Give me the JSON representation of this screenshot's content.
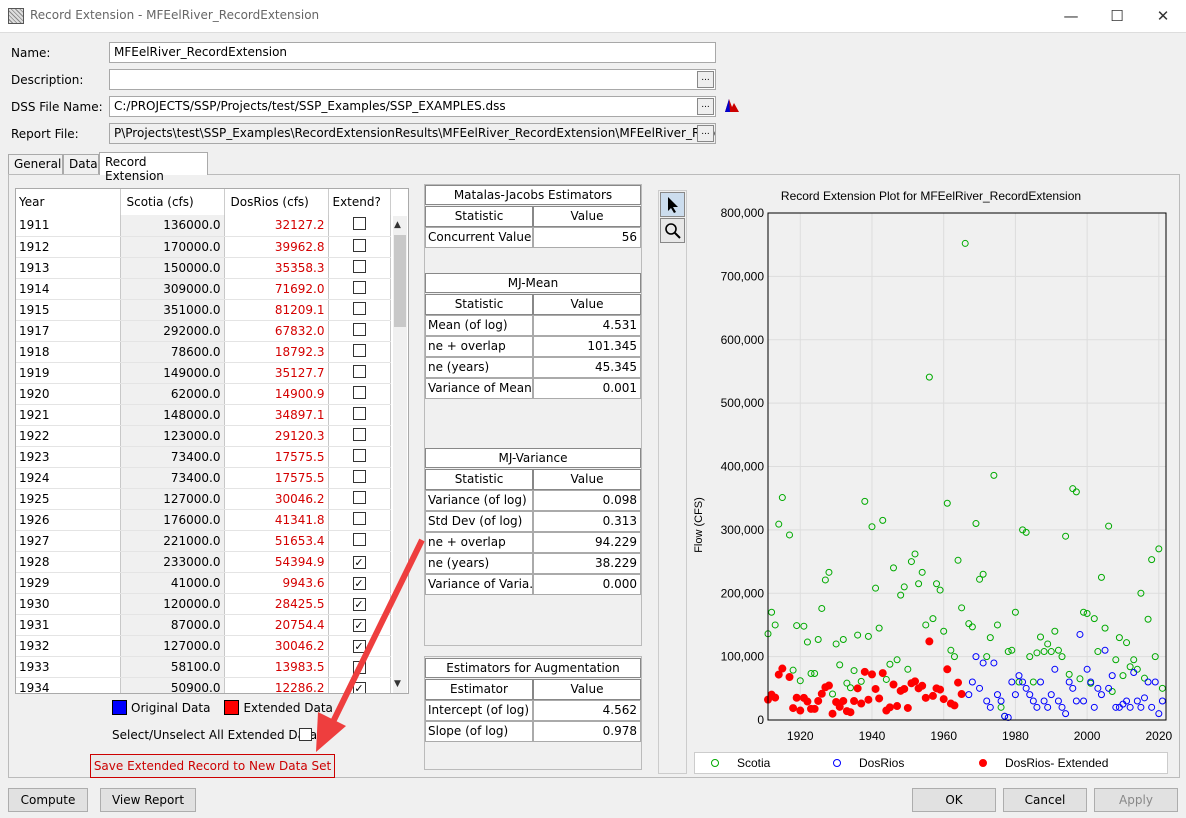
{
  "window": {
    "title": "Record Extension - MFEelRiver_RecordExtension",
    "minimize": "—",
    "maximize": "☐",
    "close": "✕"
  },
  "form": {
    "name_label": "Name:",
    "name_value": "MFEelRiver_RecordExtension",
    "description_label": "Description:",
    "description_value": "",
    "dss_label": "DSS File Name:",
    "dss_value": "C:/PROJECTS/SSP/Projects/test/SSP_Examples/SSP_EXAMPLES.dss",
    "report_label": "Report File:",
    "report_value": "P\\Projects\\test\\SSP_Examples\\RecordExtensionResults\\MFEelRiver_RecordExtension\\MFEelRiver_Record",
    "browse": "..."
  },
  "tabs": [
    "General",
    "Data",
    "Record Extension"
  ],
  "table": {
    "columns": [
      "Year",
      "Scotia (cfs)",
      "DosRios (cfs)",
      "Extend?"
    ],
    "rows": [
      [
        "1911",
        "136000.0",
        "32127.2",
        false
      ],
      [
        "1912",
        "170000.0",
        "39962.8",
        false
      ],
      [
        "1913",
        "150000.0",
        "35358.3",
        false
      ],
      [
        "1914",
        "309000.0",
        "71692.0",
        false
      ],
      [
        "1915",
        "351000.0",
        "81209.1",
        false
      ],
      [
        "1917",
        "292000.0",
        "67832.0",
        false
      ],
      [
        "1918",
        "78600.0",
        "18792.3",
        false
      ],
      [
        "1919",
        "149000.0",
        "35127.7",
        false
      ],
      [
        "1920",
        "62000.0",
        "14900.9",
        false
      ],
      [
        "1921",
        "148000.0",
        "34897.1",
        false
      ],
      [
        "1922",
        "123000.0",
        "29120.3",
        false
      ],
      [
        "1923",
        "73400.0",
        "17575.5",
        false
      ],
      [
        "1924",
        "73400.0",
        "17575.5",
        false
      ],
      [
        "1925",
        "127000.0",
        "30046.2",
        false
      ],
      [
        "1926",
        "176000.0",
        "41341.8",
        false
      ],
      [
        "1927",
        "221000.0",
        "51653.4",
        false
      ],
      [
        "1928",
        "233000.0",
        "54394.9",
        true
      ],
      [
        "1929",
        "41000.0",
        "9943.6",
        true
      ],
      [
        "1930",
        "120000.0",
        "28425.5",
        true
      ],
      [
        "1931",
        "87000.0",
        "20754.4",
        true
      ],
      [
        "1932",
        "127000.0",
        "30046.2",
        true
      ],
      [
        "1933",
        "58100.0",
        "13983.5",
        true
      ],
      [
        "1934",
        "50900.0",
        "12286.2",
        true
      ]
    ]
  },
  "legend": {
    "original": "Original Data",
    "extended": "Extended Data",
    "original_color": "#0000ff",
    "extended_color": "#ff0000"
  },
  "select_all_label": "Select/Unselect All Extended Data",
  "save_button": "Save Extended Record to New Data Set",
  "mj_estimators": {
    "title": "Matalas-Jacobs Estimators",
    "col_stat": "Statistic",
    "col_val": "Value",
    "rows": [
      [
        "Concurrent Values",
        "56"
      ]
    ]
  },
  "mj_mean": {
    "title": "MJ-Mean",
    "col_stat": "Statistic",
    "col_val": "Value",
    "rows": [
      [
        "Mean (of log)",
        "4.531"
      ],
      [
        "ne + overlap",
        "101.345"
      ],
      [
        "ne (years)",
        "45.345"
      ],
      [
        "Variance of Mean",
        "0.001"
      ]
    ]
  },
  "mj_variance": {
    "title": "MJ-Variance",
    "col_stat": "Statistic",
    "col_val": "Value",
    "rows": [
      [
        "Variance (of log)",
        "0.098"
      ],
      [
        "Std Dev (of log)",
        "0.313"
      ],
      [
        "ne + overlap",
        "94.229"
      ],
      [
        "ne (years)",
        "38.229"
      ],
      [
        "Variance of Varia...",
        "0.000"
      ]
    ]
  },
  "augmentation": {
    "title": "Estimators for Augmentation",
    "col_stat": "Estimator",
    "col_val": "Value",
    "rows": [
      [
        "Intercept (of log)",
        "4.562"
      ],
      [
        "Slope (of log)",
        "0.978"
      ]
    ]
  },
  "chart_data": {
    "type": "scatter",
    "title": "Record Extension Plot for MFEelRiver_RecordExtension",
    "ylabel": "Flow (CFS)",
    "xlabel": "",
    "xlim": [
      1911,
      2022
    ],
    "ylim": [
      0,
      800000
    ],
    "xticks": [
      "1920",
      "1940",
      "1960",
      "1980",
      "2000",
      "2020"
    ],
    "yticks": [
      "0",
      "100,000",
      "200,000",
      "300,000",
      "400,000",
      "500,000",
      "600,000",
      "700,000",
      "800,000"
    ],
    "series": [
      {
        "name": "Scotia",
        "color": "#00aa00",
        "marker": "open-circle",
        "x": [
          1911,
          1912,
          1913,
          1914,
          1915,
          1917,
          1918,
          1919,
          1920,
          1921,
          1922,
          1923,
          1924,
          1925,
          1926,
          1927,
          1928,
          1929,
          1930,
          1931,
          1932,
          1933,
          1934,
          1935,
          1936,
          1937,
          1938,
          1939,
          1940,
          1941,
          1942,
          1943,
          1944,
          1945,
          1946,
          1947,
          1948,
          1949,
          1950,
          1951,
          1952,
          1953,
          1954,
          1955,
          1956,
          1957,
          1958,
          1959,
          1960,
          1961,
          1962,
          1963,
          1964,
          1965,
          1966,
          1967,
          1968,
          1969,
          1970,
          1971,
          1972,
          1973,
          1974,
          1975,
          1976,
          1977,
          1978,
          1979,
          1980,
          1981,
          1982,
          1983,
          1984,
          1985,
          1986,
          1987,
          1988,
          1989,
          1990,
          1991,
          1992,
          1993,
          1994,
          1995,
          1996,
          1997,
          1998,
          1999,
          2000,
          2001,
          2002,
          2003,
          2004,
          2005,
          2006,
          2007,
          2008,
          2009,
          2010,
          2011,
          2012,
          2013,
          2014,
          2015,
          2016,
          2017,
          2018,
          2019,
          2020,
          2021
        ],
        "values": [
          136000,
          170000,
          150000,
          309000,
          351000,
          292000,
          78600,
          149000,
          62000,
          148000,
          123000,
          73400,
          73400,
          127000,
          176000,
          221000,
          233000,
          41000,
          120000,
          87000,
          127000,
          58100,
          50900,
          78000,
          134000,
          61000,
          345000,
          132000,
          305000,
          208000,
          145000,
          315000,
          64000,
          88000,
          240000,
          95000,
          197000,
          210000,
          80000,
          250000,
          262000,
          215000,
          233000,
          150000,
          541000,
          160000,
          215000,
          205000,
          140000,
          342000,
          110000,
          100000,
          252000,
          177000,
          752000,
          152000,
          147000,
          310000,
          222000,
          230000,
          100000,
          130000,
          386000,
          150000,
          20000,
          6000,
          108000,
          110000,
          170000,
          60000,
          300000,
          296000,
          100000,
          60000,
          106000,
          131000,
          108000,
          120000,
          108000,
          140000,
          110000,
          100000,
          290000,
          72000,
          365000,
          360000,
          65000,
          170000,
          168000,
          58000,
          160000,
          108000,
          225000,
          145000,
          306000,
          45000,
          95000,
          130000,
          70000,
          122000,
          84000,
          95000,
          80000,
          200000,
          66000,
          159000,
          253000,
          100000,
          270000,
          50000
        ]
      },
      {
        "name": "DosRios",
        "color": "#0000ff",
        "marker": "open-circle",
        "x": [
          1967,
          1968,
          1969,
          1970,
          1971,
          1972,
          1973,
          1974,
          1975,
          1976,
          1977,
          1978,
          1979,
          1980,
          1981,
          1982,
          1983,
          1984,
          1985,
          1986,
          1987,
          1988,
          1989,
          1990,
          1991,
          1992,
          1993,
          1994,
          1995,
          1996,
          1997,
          1998,
          1999,
          2000,
          2001,
          2002,
          2003,
          2004,
          2005,
          2006,
          2007,
          2008,
          2009,
          2010,
          2011,
          2012,
          2013,
          2014,
          2015,
          2016,
          2017,
          2018,
          2019,
          2020,
          2021
        ],
        "values": [
          40000,
          60000,
          100000,
          50000,
          90000,
          30000,
          20000,
          90000,
          40000,
          30000,
          6000,
          4000,
          60000,
          40000,
          70000,
          60000,
          50000,
          40000,
          30000,
          20000,
          60000,
          30000,
          20000,
          40000,
          80000,
          30000,
          20000,
          10000,
          60000,
          50000,
          30000,
          135000,
          30000,
          80000,
          60000,
          20000,
          50000,
          40000,
          110000,
          50000,
          70000,
          20000,
          20000,
          25000,
          30000,
          20000,
          75000,
          30000,
          20000,
          35000,
          60000,
          20000,
          60000,
          10000,
          30000
        ]
      },
      {
        "name": "DosRios- Extended",
        "color": "#ff0000",
        "marker": "filled-circle",
        "x": [
          1911,
          1912,
          1913,
          1914,
          1915,
          1917,
          1918,
          1919,
          1920,
          1921,
          1922,
          1923,
          1924,
          1925,
          1926,
          1927,
          1928,
          1929,
          1930,
          1931,
          1932,
          1933,
          1934,
          1935,
          1936,
          1937,
          1938,
          1939,
          1940,
          1941,
          1942,
          1943,
          1944,
          1945,
          1946,
          1947,
          1948,
          1949,
          1950,
          1951,
          1952,
          1953,
          1954,
          1955,
          1956,
          1957,
          1958,
          1959,
          1960,
          1961,
          1962,
          1963,
          1964,
          1965
        ],
        "values": [
          32127,
          39963,
          35358,
          71692,
          81209,
          67832,
          18792,
          35128,
          14901,
          34897,
          29120,
          17576,
          17576,
          30046,
          41342,
          51653,
          54395,
          9944,
          28426,
          20754,
          30046,
          13984,
          12286,
          30000,
          50000,
          26000,
          76000,
          32000,
          72000,
          49000,
          34000,
          74000,
          15000,
          20000,
          56000,
          22000,
          46000,
          49000,
          19000,
          58000,
          61000,
          50000,
          54000,
          35000,
          124000,
          38000,
          50000,
          48000,
          33000,
          80000,
          26000,
          23000,
          59000,
          41000
        ]
      }
    ]
  },
  "chart_tools": {
    "select": "pointer",
    "zoom": "magnifier"
  },
  "bottom": {
    "compute": "Compute",
    "view_report": "View Report",
    "ok": "OK",
    "cancel": "Cancel",
    "apply": "Apply"
  }
}
